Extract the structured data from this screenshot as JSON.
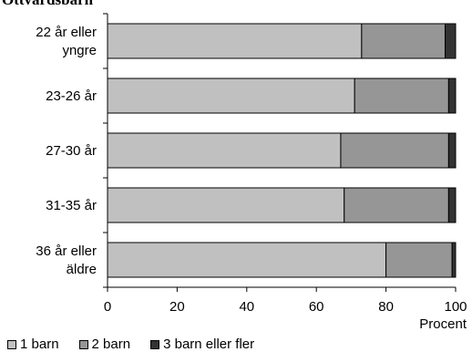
{
  "partial_title": "Ottvårdsbarn",
  "chart_data": {
    "type": "bar",
    "orientation": "horizontal",
    "stacked": true,
    "categories": [
      "22 år eller yngre",
      "23-26 år",
      "27-30 år",
      "31-35 år",
      "36 år eller äldre"
    ],
    "category_lines": [
      [
        "22 år eller",
        "yngre"
      ],
      [
        "23-26 år"
      ],
      [
        "27-30 år"
      ],
      [
        "31-35 år"
      ],
      [
        "36 år eller",
        "äldre"
      ]
    ],
    "series": [
      {
        "name": "1 barn",
        "values": [
          73,
          71,
          67,
          68,
          80
        ],
        "color": "#c0c0c0"
      },
      {
        "name": "2 barn",
        "values": [
          24,
          27,
          31,
          30,
          19
        ],
        "color": "#969696"
      },
      {
        "name": "3 barn eller fler",
        "values": [
          3,
          2,
          2,
          2,
          1
        ],
        "color": "#333333"
      }
    ],
    "xlim": [
      0,
      100
    ],
    "xticks": [
      0,
      20,
      40,
      60,
      80,
      100
    ],
    "xlabel": "Procent",
    "ylabel": "",
    "grid": false,
    "legend_position": "bottom"
  }
}
